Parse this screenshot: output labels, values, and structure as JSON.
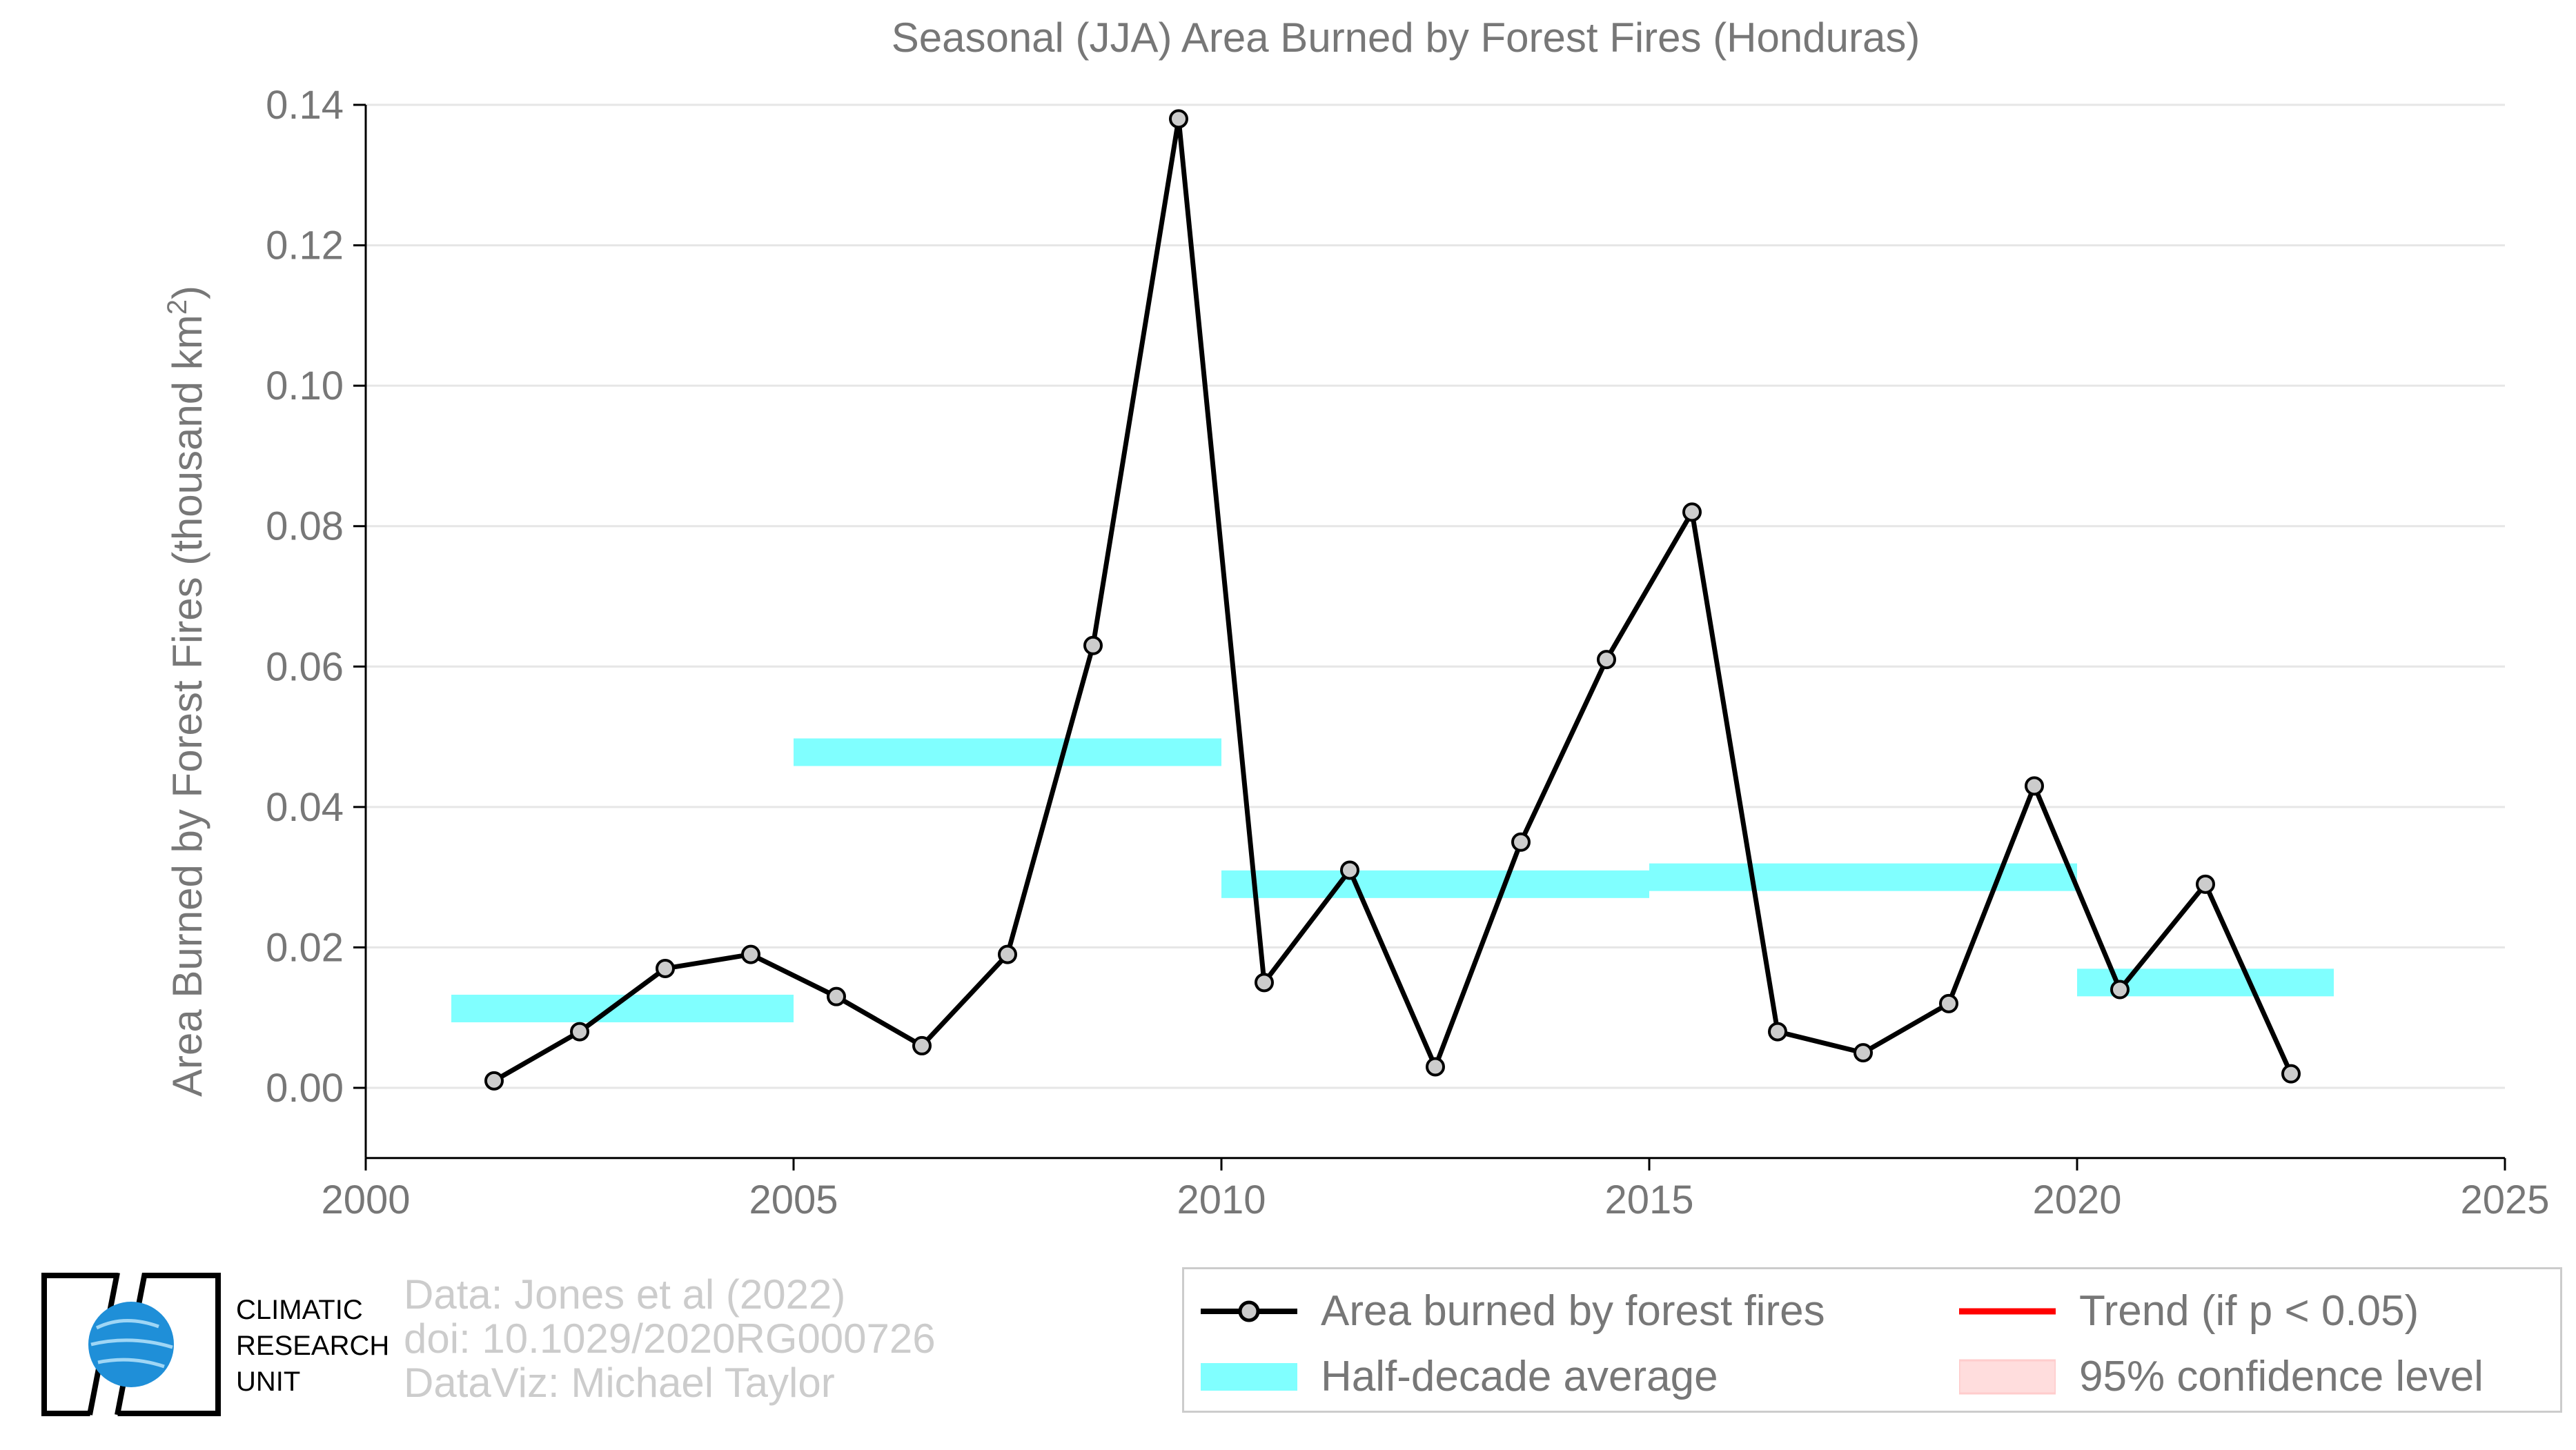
{
  "chart_data": {
    "type": "line",
    "title": "Seasonal (JJA) Area Burned by Forest Fires (Honduras)",
    "ylabel": "Area Burned by Forest Fires (thousand km²)",
    "xlabel": "",
    "xlim": [
      2000,
      2025
    ],
    "ylim": [
      -0.01,
      0.14
    ],
    "x_ticks": [
      "2000",
      "2005",
      "2010",
      "2015",
      "2020",
      "2025"
    ],
    "y_ticks": [
      "0.00",
      "0.02",
      "0.04",
      "0.06",
      "0.08",
      "0.10",
      "0.12",
      "0.14"
    ],
    "grid": true,
    "series": [
      {
        "name": "Area burned by forest fires",
        "color": "#000000",
        "marker_fill": "#cccccc",
        "x": [
          2001.5,
          2002.5,
          2003.5,
          2004.5,
          2005.5,
          2006.5,
          2007.5,
          2008.5,
          2009.5,
          2010.5,
          2011.5,
          2012.5,
          2013.5,
          2014.5,
          2015.5,
          2016.5,
          2017.5,
          2018.5,
          2019.5,
          2020.5,
          2021.5,
          2022.5
        ],
        "values": [
          0.001,
          0.008,
          0.017,
          0.019,
          0.013,
          0.006,
          0.019,
          0.063,
          0.138,
          0.015,
          0.031,
          0.003,
          0.035,
          0.061,
          0.082,
          0.008,
          0.005,
          0.012,
          0.043,
          0.014,
          0.029,
          0.002
        ]
      },
      {
        "name": "Half-decade average",
        "color": "#80ffff",
        "segments": [
          {
            "x0": 2001,
            "x1": 2005,
            "value": 0.0113
          },
          {
            "x0": 2005,
            "x1": 2010,
            "value": 0.0478
          },
          {
            "x0": 2010,
            "x1": 2015,
            "value": 0.029
          },
          {
            "x0": 2015,
            "x1": 2020,
            "value": 0.03
          },
          {
            "x0": 2020,
            "x1": 2023,
            "value": 0.015
          }
        ]
      }
    ],
    "legend": {
      "placement": "bottom-right",
      "items": [
        {
          "label": "Area burned by forest fires",
          "kind": "line-marker",
          "color": "#000000"
        },
        {
          "label": "Trend (if p < 0.05)",
          "kind": "line",
          "color": "#ff0000"
        },
        {
          "label": "Half-decade average",
          "kind": "band",
          "color": "#80ffff"
        },
        {
          "label": "95% confidence level",
          "kind": "band",
          "color": "#ffdddd"
        }
      ]
    }
  },
  "credits": {
    "line1": "Data: Jones et al (2022)",
    "line2": "doi: 10.1029/2020RG000726",
    "line3": "DataViz: Michael Taylor"
  },
  "logo": {
    "line1": "CLIMATIC",
    "line2": "RESEARCH",
    "line3": "UNIT"
  }
}
